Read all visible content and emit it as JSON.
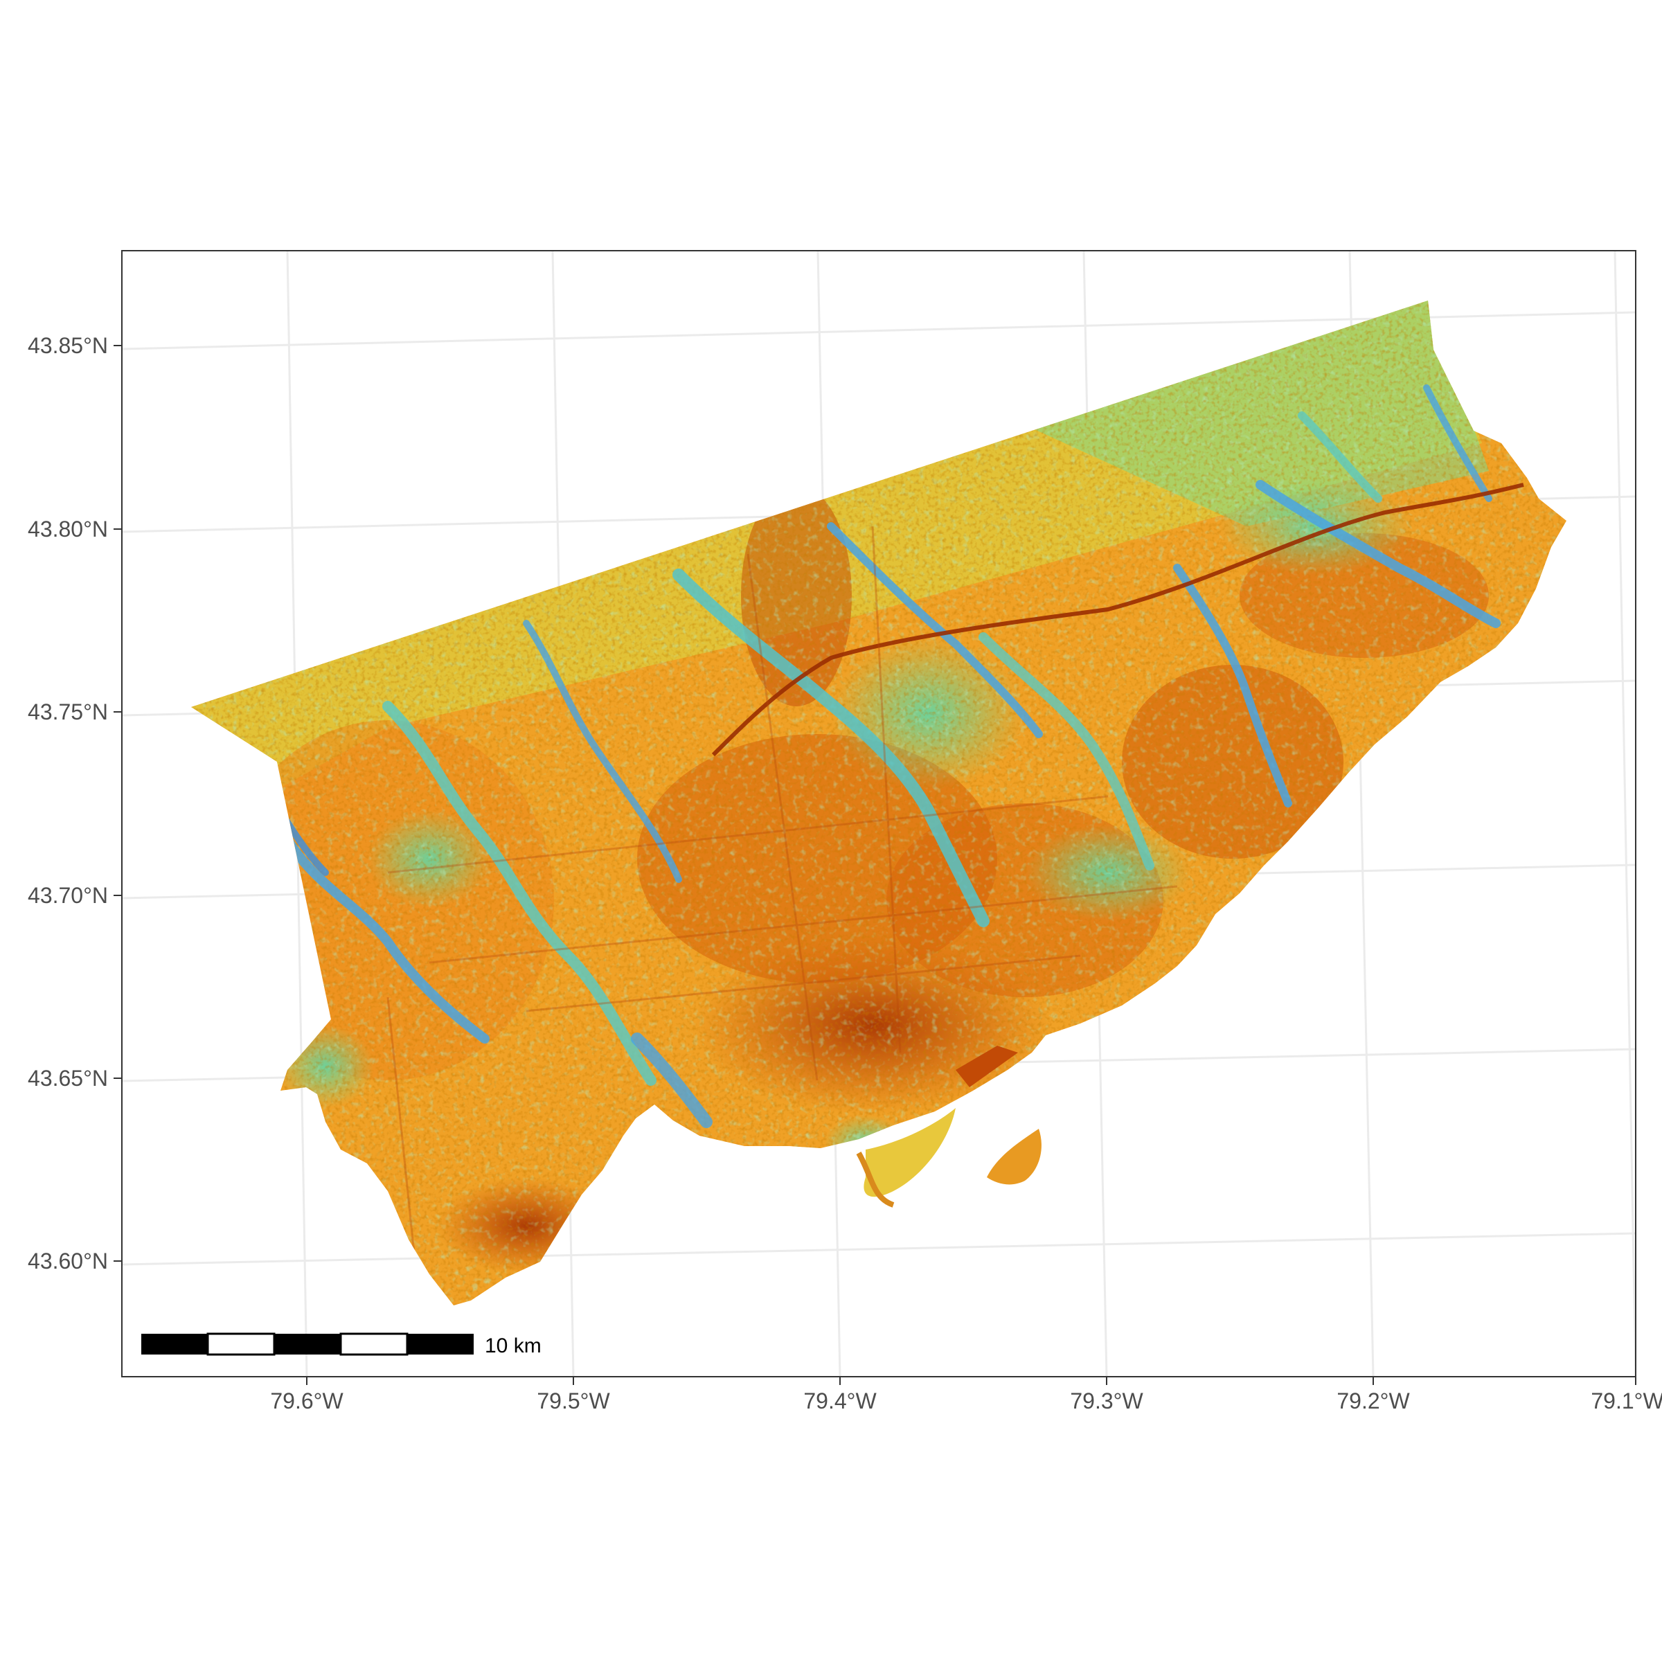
{
  "map": {
    "type": "raster map",
    "y_ticks": [
      "43.85°N",
      "43.80°N",
      "43.75°N",
      "43.70°N",
      "43.65°N",
      "43.60°N"
    ],
    "x_ticks": [
      "79.6°W",
      "79.5°W",
      "79.4°W",
      "79.3°W",
      "79.2°W",
      "79.1°W"
    ],
    "scale_bar": {
      "label": "10 km",
      "segments": 5
    },
    "color_scale": [
      "#3a8ee0",
      "#5fd7a8",
      "#d7df45",
      "#f3a226",
      "#e06a0c",
      "#b13c04"
    ],
    "grid": "on",
    "background": "#ffffff",
    "panel_border": "#333333",
    "grid_color": "#ebebeb"
  }
}
